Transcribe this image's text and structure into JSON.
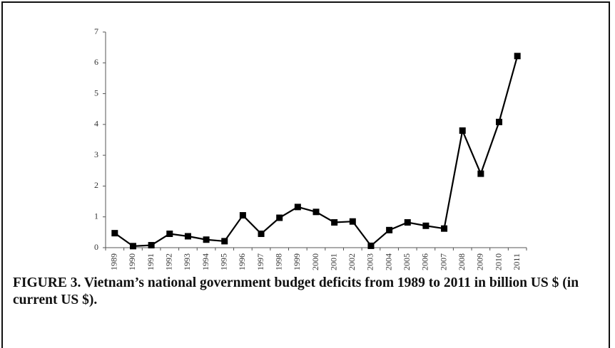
{
  "chart_data": {
    "type": "line",
    "title": "FIGURE 3. Vietnam’s national government budget deficits from 1989 to 2011 in billion US $ (in current US $).",
    "categories": [
      "1989",
      "1990",
      "1991",
      "1992",
      "1993",
      "1994",
      "1995",
      "1996",
      "1997",
      "1998",
      "1999",
      "2000",
      "2001",
      "2002",
      "2003",
      "2004",
      "2005",
      "2006",
      "2007",
      "2008",
      "2009",
      "2010",
      "2011"
    ],
    "values": [
      0.47,
      0.05,
      0.08,
      0.45,
      0.37,
      0.26,
      0.21,
      1.05,
      0.45,
      0.97,
      1.32,
      1.16,
      0.82,
      0.85,
      0.06,
      0.57,
      0.82,
      0.71,
      0.62,
      3.8,
      2.4,
      4.08,
      6.22
    ],
    "color": "#000000",
    "ylim": [
      0,
      7
    ],
    "yticks": [
      0,
      1,
      2,
      3,
      4,
      5,
      6,
      7
    ],
    "grid": false
  }
}
